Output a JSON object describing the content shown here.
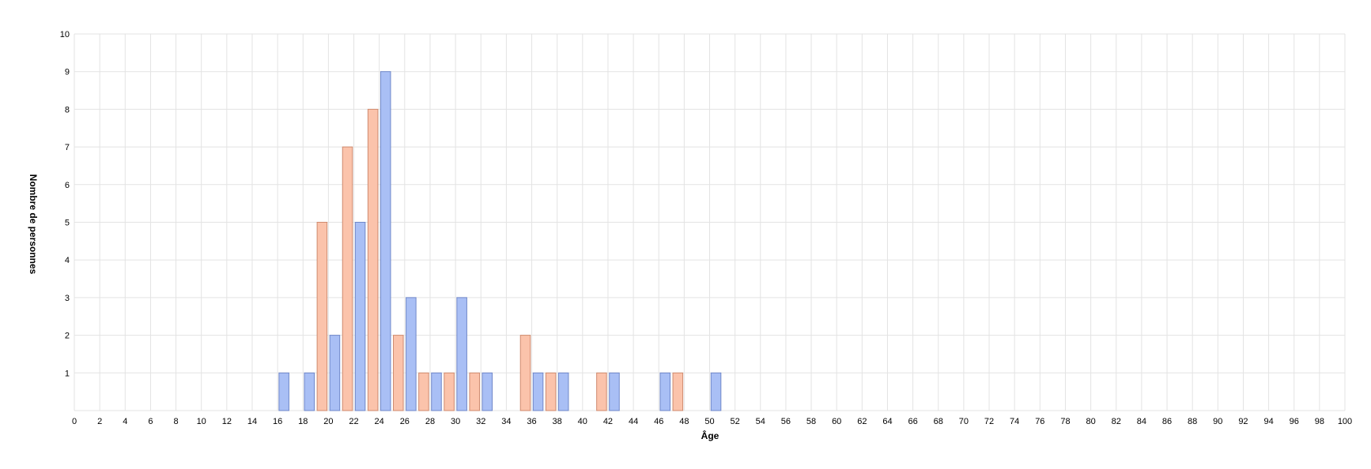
{
  "chart_data": {
    "type": "bar",
    "xlabel": "Âge",
    "ylabel": "Nombre de personnes",
    "title": "",
    "xlim": [
      0,
      100
    ],
    "ylim": [
      0,
      10
    ],
    "x_ticks": [
      0,
      2,
      4,
      6,
      8,
      10,
      12,
      14,
      16,
      18,
      20,
      22,
      24,
      26,
      28,
      30,
      32,
      34,
      36,
      38,
      40,
      42,
      44,
      46,
      48,
      50,
      52,
      54,
      56,
      58,
      60,
      62,
      64,
      66,
      68,
      70,
      72,
      74,
      76,
      78,
      80,
      82,
      84,
      86,
      88,
      90,
      92,
      94,
      96,
      98,
      100
    ],
    "y_ticks": [
      1,
      2,
      3,
      4,
      5,
      6,
      7,
      8,
      9,
      10
    ],
    "grid": true,
    "series": [
      {
        "color": "#a9bff5",
        "stroke": "#6f87c9",
        "points": [
          {
            "x": 16,
            "y": 1
          },
          {
            "x": 18,
            "y": 1
          },
          {
            "x": 20,
            "y": 2
          },
          {
            "x": 22,
            "y": 5
          },
          {
            "x": 24,
            "y": 9
          },
          {
            "x": 26,
            "y": 3
          },
          {
            "x": 28,
            "y": 1
          },
          {
            "x": 30,
            "y": 3
          },
          {
            "x": 32,
            "y": 1
          },
          {
            "x": 36,
            "y": 1
          },
          {
            "x": 38,
            "y": 1
          },
          {
            "x": 42,
            "y": 1
          },
          {
            "x": 46,
            "y": 1
          },
          {
            "x": 50,
            "y": 1
          }
        ]
      },
      {
        "color": "#fbc3ab",
        "stroke": "#cf8a6e",
        "points": [
          {
            "x": 19,
            "y": 5
          },
          {
            "x": 21,
            "y": 7
          },
          {
            "x": 23,
            "y": 8
          },
          {
            "x": 25,
            "y": 2
          },
          {
            "x": 27,
            "y": 1
          },
          {
            "x": 29,
            "y": 1
          },
          {
            "x": 31,
            "y": 1
          },
          {
            "x": 35,
            "y": 2
          },
          {
            "x": 37,
            "y": 1
          },
          {
            "x": 41,
            "y": 1
          },
          {
            "x": 47,
            "y": 1
          }
        ]
      }
    ]
  }
}
